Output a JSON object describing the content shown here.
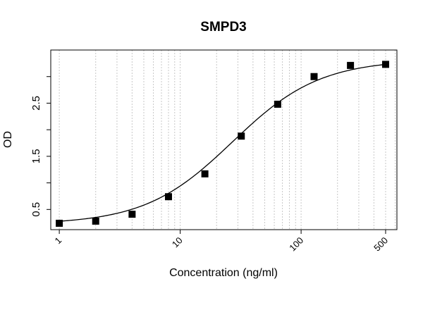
{
  "chart_data": {
    "type": "scatter",
    "title": "SMPD3",
    "xlabel": "Concentration (ng/ml)",
    "ylabel": "OD",
    "x_scale": "log",
    "xlim": [
      0.85,
      620
    ],
    "ylim": [
      0.12,
      3.5
    ],
    "x_ticks": [
      1,
      10,
      100,
      500
    ],
    "x_tick_labels": [
      "1",
      "10",
      "100",
      "500"
    ],
    "y_ticks": [
      0.5,
      1.5,
      2.5
    ],
    "y_tick_labels": [
      "0.5",
      "1.5",
      "2.5"
    ],
    "y_minor_ticks": [
      1.0,
      2.0,
      3.0
    ],
    "grid": "vertical dotted at log decades",
    "points": {
      "x": [
        1,
        2,
        4,
        8,
        16,
        32,
        64,
        128,
        256,
        500
      ],
      "y": [
        0.24,
        0.28,
        0.41,
        0.74,
        1.17,
        1.88,
        2.48,
        3.0,
        3.21,
        3.23
      ]
    },
    "fit_curve": {
      "model": "4PL",
      "bottom": 0.22,
      "top": 3.32,
      "ec50": 27,
      "hill": 1.2
    }
  }
}
